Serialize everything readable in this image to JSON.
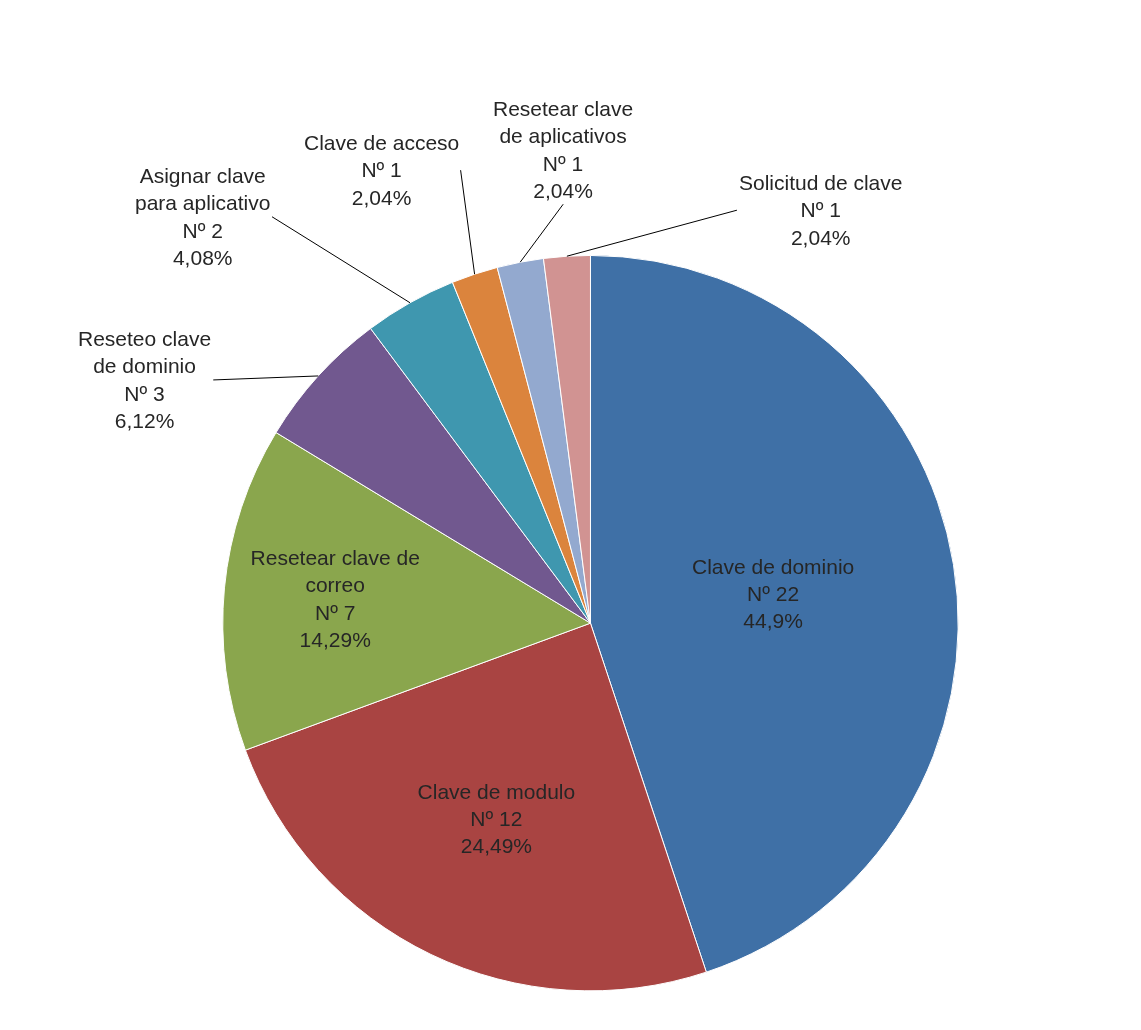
{
  "chart_data": {
    "type": "pie",
    "categories": [
      "Clave de dominio",
      "Clave de modulo",
      "Resetear clave de\ncorreo",
      "Reseteo clave\nde dominio",
      "Asignar clave\npara aplicativo",
      "Clave de acceso",
      "Resetear clave\nde aplicativos",
      "Solicitud de clave"
    ],
    "values": [
      22,
      12,
      7,
      3,
      2,
      1,
      1,
      1
    ],
    "colors": [
      "#3f70a6",
      "#a94442",
      "#8aa64d",
      "#71588f",
      "#3f97af",
      "#db843d",
      "#93a9cf",
      "#d19392"
    ],
    "value_labels": [
      "Nº 22\n44,9%",
      "Nº 12\n24,49%",
      "Nº 7\n14,29%",
      "Nº 3\n6,12%",
      "Nº 2\n4,08%",
      "Nº 1\n2,04%",
      "Nº 1\n2,04%",
      "Nº 1\n2,04%"
    ],
    "legend": false
  }
}
